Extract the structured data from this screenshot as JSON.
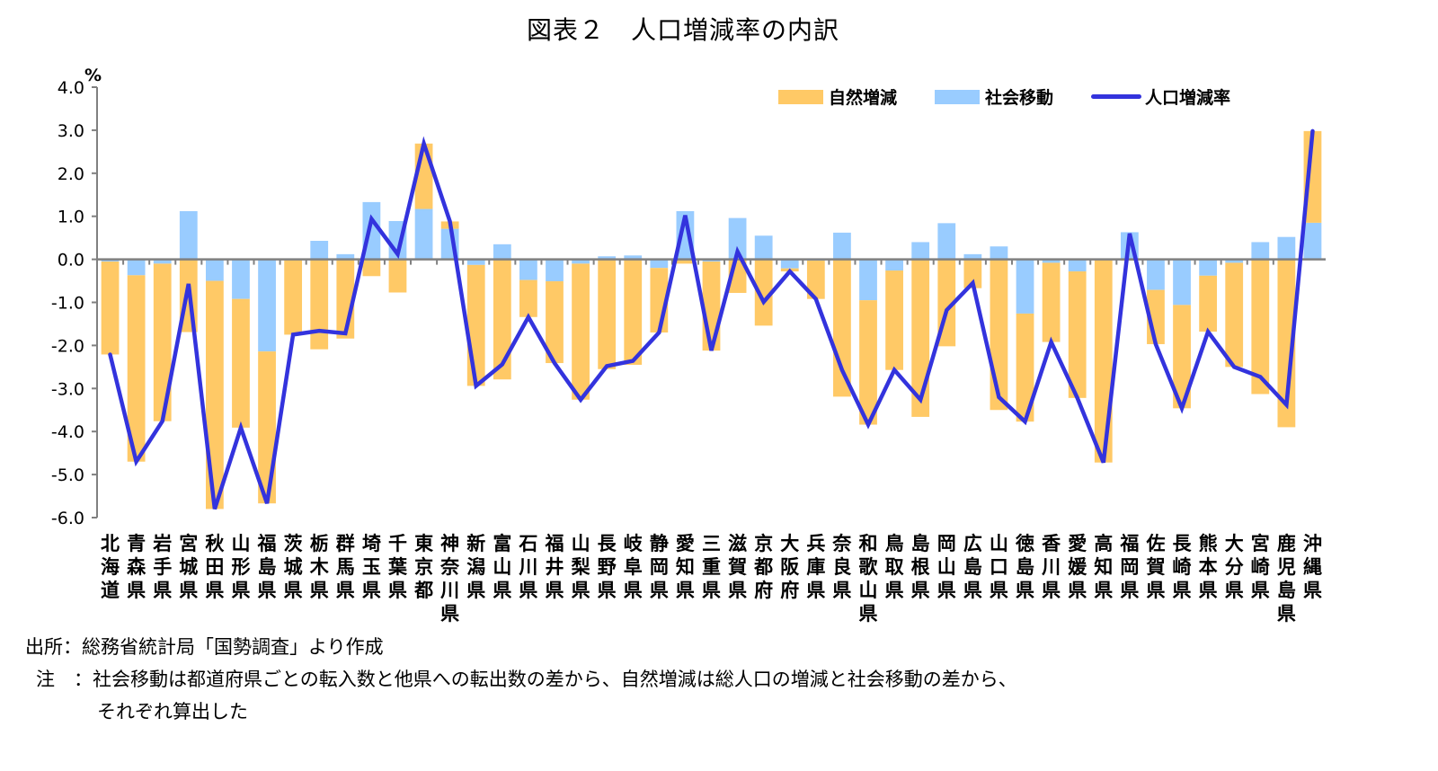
{
  "title": "図表２　人口増減率の内訳",
  "footnotes": {
    "source": "出所：総務省統計局「国勢調査」より作成",
    "note_line1": "注　：社会移動は都道府県ごとの転入数と他県への転出数の差から、自然増減は総人口の増減と社会移動の差から、",
    "note_line2": "それぞれ算出した"
  },
  "colors": {
    "natural": "#FFC966",
    "social": "#99CCFF",
    "total": "#3333DD",
    "axis": "#808080"
  },
  "chart_data": {
    "type": "bar",
    "stacked": true,
    "title": "図表２　人口増減率の内訳",
    "xlabel": "",
    "ylabel": "%",
    "ylim": [
      -6.0,
      4.0
    ],
    "yticks": [
      "4.0",
      "3.0",
      "2.0",
      "1.0",
      "0.0",
      "-1.0",
      "-2.0",
      "-3.0",
      "-4.0",
      "-5.0",
      "-6.0"
    ],
    "ytick_values": [
      4,
      3,
      2,
      1,
      0,
      -1,
      -2,
      -3,
      -4,
      -5,
      -6
    ],
    "grid": false,
    "legend_position": "top-right",
    "categories": [
      "北海道",
      "青森県",
      "岩手県",
      "宮城県",
      "秋田県",
      "山形県",
      "福島県",
      "茨城県",
      "栃木県",
      "群馬県",
      "埼玉県",
      "千葉県",
      "東京都",
      "神奈川県",
      "新潟県",
      "富山県",
      "石川県",
      "福井県",
      "山梨県",
      "長野県",
      "岐阜県",
      "静岡県",
      "愛知県",
      "三重県",
      "滋賀県",
      "京都府",
      "大阪府",
      "兵庫県",
      "奈良県",
      "和歌山県",
      "鳥取県",
      "島根県",
      "岡山県",
      "広島県",
      "山口県",
      "徳島県",
      "香川県",
      "愛媛県",
      "高知県",
      "福岡県",
      "佐賀県",
      "長崎県",
      "熊本県",
      "大分県",
      "宮崎県",
      "鹿児島県",
      "沖縄県"
    ],
    "series": [
      {
        "name": "自然増減",
        "type": "bar",
        "values": [
          -2.16,
          -4.33,
          -3.66,
          -1.69,
          -5.3,
          -2.99,
          -3.53,
          -1.74,
          -2.09,
          -1.84,
          -0.39,
          -0.77,
          1.52,
          0.17,
          -2.81,
          -2.79,
          -0.86,
          -1.9,
          -3.16,
          -2.55,
          -2.45,
          -1.5,
          -0.1,
          -2.07,
          -0.78,
          -1.54,
          -0.07,
          -0.89,
          -3.19,
          -2.89,
          -2.31,
          -3.66,
          -2.02,
          -0.67,
          -3.5,
          -2.51,
          -1.84,
          -2.94,
          -4.7,
          -0.03,
          -1.26,
          -2.4,
          -1.3,
          -2.42,
          -3.13,
          -3.9,
          2.13
        ]
      },
      {
        "name": "社会移動",
        "type": "bar",
        "values": [
          -0.05,
          -0.37,
          -0.1,
          1.12,
          -0.5,
          -0.92,
          -2.14,
          -0.01,
          0.43,
          0.12,
          1.33,
          0.89,
          1.17,
          0.71,
          -0.13,
          0.35,
          -0.48,
          -0.51,
          -0.1,
          0.07,
          0.09,
          -0.2,
          1.12,
          -0.05,
          0.96,
          0.55,
          -0.21,
          -0.03,
          0.62,
          -0.95,
          -0.26,
          0.4,
          0.84,
          0.12,
          0.3,
          -1.26,
          -0.08,
          -0.28,
          -0.02,
          0.63,
          -0.71,
          -1.06,
          -0.38,
          -0.08,
          0.4,
          0.52,
          0.85
        ]
      },
      {
        "name": "人口増減率",
        "type": "line",
        "values": [
          -2.21,
          -4.7,
          -3.76,
          -0.57,
          -5.8,
          -3.91,
          -5.67,
          -1.75,
          -1.66,
          -1.72,
          0.94,
          0.12,
          2.69,
          0.88,
          -2.94,
          -2.44,
          -1.34,
          -2.41,
          -3.26,
          -2.48,
          -2.36,
          -1.7,
          1.02,
          -2.12,
          0.18,
          -0.99,
          -0.28,
          -0.92,
          -2.57,
          -3.84,
          -2.57,
          -3.26,
          -1.18,
          -0.55,
          -3.2,
          -3.77,
          -1.92,
          -3.22,
          -4.72,
          0.6,
          -1.97,
          -3.46,
          -1.68,
          -2.5,
          -2.73,
          -3.38,
          2.98
        ]
      }
    ]
  }
}
